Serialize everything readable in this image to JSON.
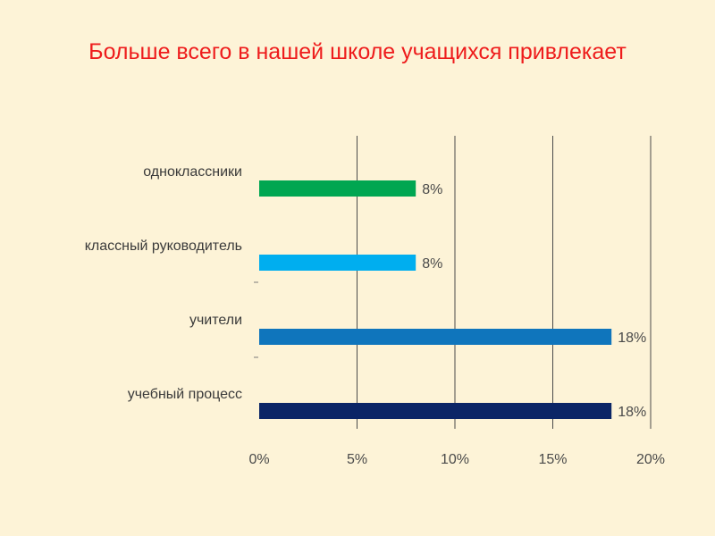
{
  "title": "Больше всего в нашей школе учащихся привлекает",
  "chart_data": {
    "type": "bar",
    "orientation": "horizontal",
    "categories": [
      "одноклассники",
      "классный руководитель",
      "учители",
      "учебный процесс"
    ],
    "values": [
      8,
      8,
      18,
      18
    ],
    "value_labels": [
      "8%",
      "8%",
      "18%",
      "18%"
    ],
    "colors": [
      "#00a651",
      "#00aeef",
      "#0f75bc",
      "#0b2566"
    ],
    "xlim": [
      0,
      20
    ],
    "ticks": [
      0,
      5,
      10,
      15,
      20
    ],
    "tick_labels": [
      "0%",
      "5%",
      "10%",
      "15%",
      "20%"
    ],
    "xlabel": "",
    "ylabel": "",
    "grid": true
  }
}
